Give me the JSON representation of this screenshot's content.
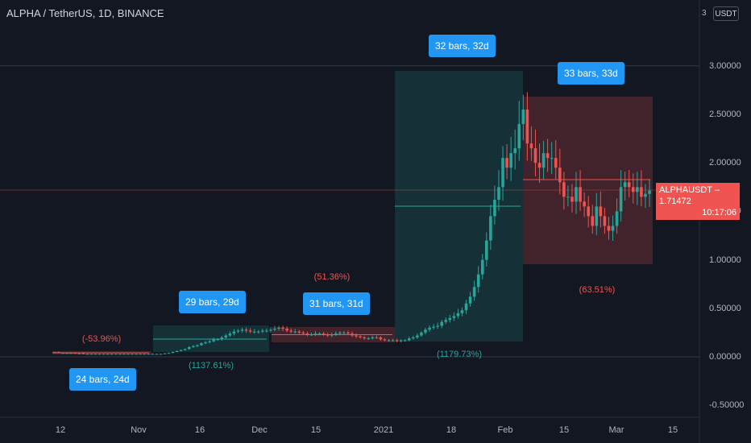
{
  "header": {
    "title": "ALPHA / TetherUS, 1D, BINANCE"
  },
  "scale": {
    "button_label": "USDT",
    "top_tick": "3"
  },
  "y_axis": {
    "ticks": [
      "3.00000",
      "2.50000",
      "2.00000",
      "1.50000",
      "1.00000",
      "0.50000",
      "0.00000",
      "-0.50000"
    ],
    "values": [
      3,
      2.5,
      2,
      1.5,
      1,
      0.5,
      0,
      -0.5
    ]
  },
  "x_axis": {
    "ticks": [
      "12",
      "Nov",
      "16",
      "Dec",
      "15",
      "2021",
      "18",
      "Feb",
      "15",
      "Mar",
      "15"
    ]
  },
  "price_tag": {
    "symbol": "ALPHAUSDT",
    "price": "1.71472",
    "countdown": "10:17:06"
  },
  "colors": {
    "up": "#26a69a",
    "down": "#ef5350",
    "accent": "#2196f3",
    "bg": "#131722"
  },
  "measurements": [
    {
      "bars_label": "24 bars, 24d",
      "pct": "(-53.96%)",
      "direction": "down"
    },
    {
      "bars_label": "29 bars, 29d",
      "pct": "(1137.61%)",
      "direction": "up"
    },
    {
      "bars_label": "31 bars, 31d",
      "pct": "(51.36%)",
      "direction": "down"
    },
    {
      "bars_label": "32 bars, 32d",
      "pct": "(1179.73%)",
      "direction": "up"
    },
    {
      "bars_label": "33 bars, 33d",
      "pct": "(63.51%)",
      "direction": "down"
    }
  ],
  "chart_data": {
    "type": "candlestick",
    "title": "ALPHA / TetherUS, 1D, BINANCE",
    "ylim": [
      -0.55,
      3.2
    ],
    "closes": [
      0.05,
      0.04,
      0.04,
      0.04,
      0.04,
      0.035,
      0.035,
      0.03,
      0.03,
      0.03,
      0.03,
      0.03,
      0.03,
      0.03,
      0.03,
      0.03,
      0.03,
      0.03,
      0.03,
      0.03,
      0.03,
      0.03,
      0.03,
      0.03,
      0.03,
      0.03,
      0.03,
      0.035,
      0.04,
      0.05,
      0.06,
      0.07,
      0.08,
      0.1,
      0.11,
      0.12,
      0.14,
      0.15,
      0.16,
      0.18,
      0.18,
      0.2,
      0.22,
      0.24,
      0.26,
      0.27,
      0.28,
      0.27,
      0.26,
      0.26,
      0.26,
      0.27,
      0.27,
      0.28,
      0.29,
      0.3,
      0.29,
      0.27,
      0.26,
      0.26,
      0.25,
      0.24,
      0.23,
      0.23,
      0.24,
      0.24,
      0.23,
      0.22,
      0.23,
      0.24,
      0.25,
      0.25,
      0.24,
      0.22,
      0.21,
      0.2,
      0.19,
      0.19,
      0.2,
      0.2,
      0.18,
      0.17,
      0.17,
      0.17,
      0.16,
      0.17,
      0.17,
      0.19,
      0.2,
      0.22,
      0.25,
      0.28,
      0.3,
      0.31,
      0.32,
      0.36,
      0.38,
      0.4,
      0.42,
      0.45,
      0.48,
      0.55,
      0.62,
      0.72,
      0.85,
      1.0,
      1.2,
      1.45,
      1.62,
      1.75,
      2.05,
      1.95,
      2.1,
      2.15,
      2.4,
      2.55,
      2.2,
      2.15,
      2.0,
      1.95,
      2.1,
      2.05,
      2.05,
      1.95,
      1.8,
      1.65,
      1.65,
      1.6,
      1.75,
      1.6,
      1.55,
      1.45,
      1.35,
      1.55,
      1.45,
      1.35,
      1.3,
      1.35,
      1.5,
      1.75,
      1.8,
      1.75,
      1.7,
      1.75,
      1.65,
      1.68,
      1.71472
    ]
  }
}
